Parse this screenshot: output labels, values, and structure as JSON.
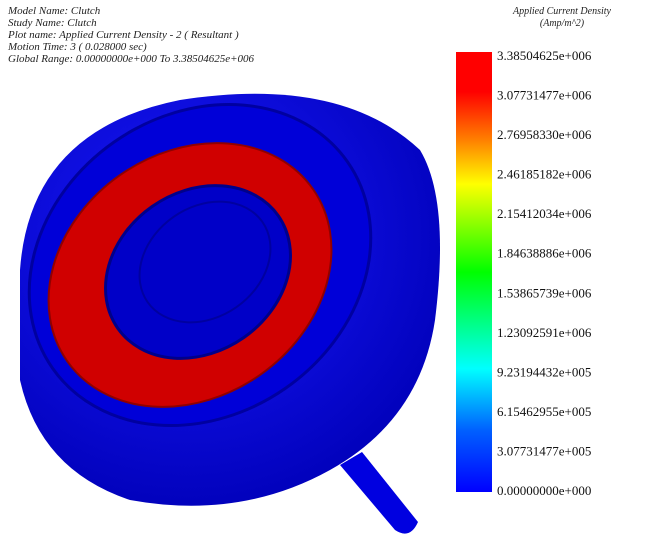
{
  "header": {
    "lines": [
      "Model Name: Clutch",
      "Study Name: Clutch",
      "Plot name: Applied Current Density - 2 ( Resultant )",
      "Motion Time: 3 ( 0.028000 sec)",
      "Global Range: 0.00000000e+000 To 3.38504625e+006"
    ]
  },
  "legend": {
    "title": "Applied Current Density",
    "units": "(Amp/m^2)",
    "labels": [
      "3.38504625e+006",
      "3.07731477e+006",
      "2.76958330e+006",
      "2.46185182e+006",
      "2.15412034e+006",
      "1.84638886e+006",
      "1.53865739e+006",
      "1.23092591e+006",
      "9.23194432e+005",
      "6.15462955e+005",
      "3.07731477e+005",
      "0.00000000e+000"
    ]
  }
}
